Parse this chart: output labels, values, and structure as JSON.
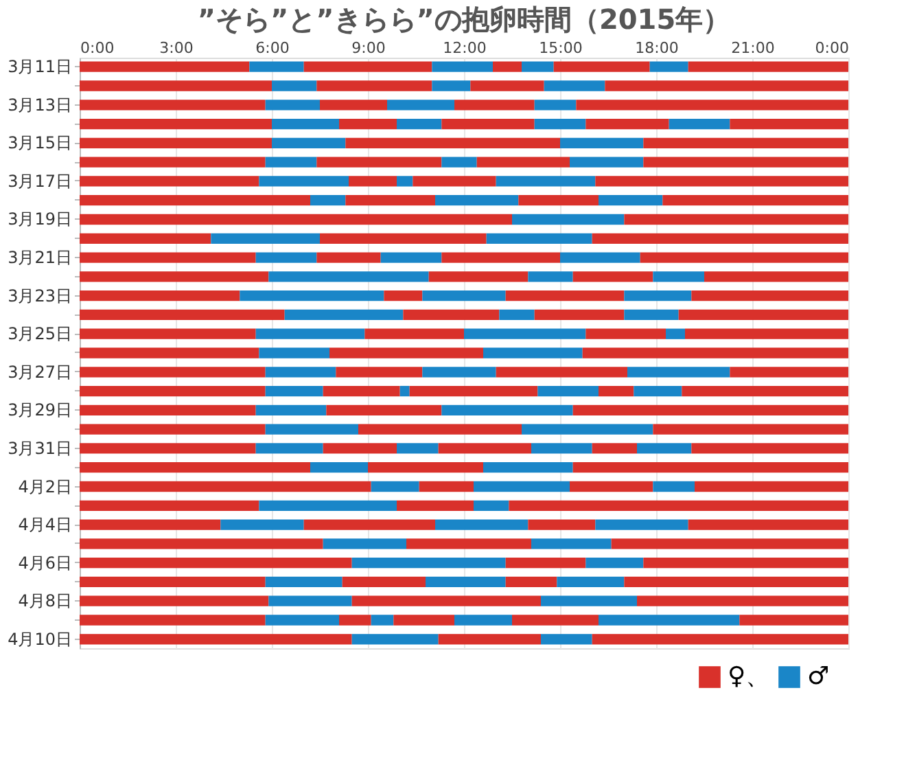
{
  "chart_data": {
    "type": "bar",
    "orientation": "horizontal",
    "stacked": true,
    "title": "”そら”と”きらら”の抱卵時間（2015年）",
    "categories": [
      "3月11日",
      null,
      "3月13日",
      null,
      "3月15日",
      null,
      "3月17日",
      null,
      "3月19日",
      null,
      "3月21日",
      null,
      "3月23日",
      null,
      "3月25日",
      null,
      "3月27日",
      null,
      "3月29日",
      null,
      "3月31日",
      null,
      "4月2日",
      null,
      "4月4日",
      null,
      "4月6日",
      null,
      "4月8日",
      null,
      "4月10日"
    ],
    "series": [
      {
        "name": "♀、",
        "color": "#d9312b",
        "values": [
          5.3,
          6.0,
          5.8,
          6.0,
          6.0,
          5.8,
          5.6,
          7.2,
          13.5,
          4.1,
          5.5,
          5.9,
          5.0,
          6.4,
          5.5,
          5.6,
          5.8,
          5.8,
          5.5,
          5.8,
          5.5,
          7.2,
          9.1,
          5.6,
          4.4,
          7.6,
          8.5,
          5.8,
          5.9,
          5.8,
          8.5
        ]
      },
      {
        "name": "♂",
        "color": "#1a86c8",
        "values": [
          1.7,
          1.4,
          1.7,
          2.1,
          2.3,
          1.6,
          2.8,
          1.1,
          3.5,
          3.4,
          1.9,
          5.0,
          4.5,
          3.7,
          3.4,
          2.2,
          2.2,
          1.8,
          2.2,
          2.9,
          2.1,
          1.8,
          1.5,
          4.3,
          2.6,
          2.6,
          4.8,
          2.4,
          2.6,
          2.3,
          2.7
        ]
      },
      {
        "color": "#d9312b",
        "values": [
          4.0,
          3.6,
          2.1,
          1.8,
          6.7,
          3.9,
          1.5,
          2.8,
          7.0,
          5.2,
          2.0,
          3.1,
          1.2,
          3.0,
          3.1,
          4.8,
          2.7,
          2.4,
          3.6,
          5.1,
          2.3,
          3.6,
          1.7,
          2.4,
          4.1,
          3.9,
          2.5,
          2.6,
          5.9,
          1.0,
          3.2
        ]
      },
      {
        "color": "#1a86c8",
        "values": [
          1.9,
          1.2,
          2.1,
          1.4,
          2.6,
          1.1,
          0.5,
          2.6,
          null,
          3.3,
          1.9,
          1.4,
          2.6,
          1.1,
          3.8,
          3.1,
          2.3,
          0.3,
          4.1,
          4.1,
          1.3,
          2.8,
          3.0,
          1.1,
          2.9,
          2.5,
          1.8,
          2.5,
          3.0,
          0.7,
          1.6
        ]
      },
      {
        "color": "#d9312b",
        "values": [
          0.9,
          2.3,
          2.5,
          2.9,
          6.4,
          2.9,
          2.6,
          2.5,
          null,
          8.0,
          3.7,
          2.5,
          3.7,
          2.8,
          2.5,
          8.3,
          4.1,
          4.0,
          8.6,
          6.1,
          2.9,
          8.6,
          2.6,
          10.6,
          2.1,
          7.4,
          6.4,
          1.6,
          6.6,
          1.9,
          8.0
        ]
      },
      {
        "color": "#1a86c8",
        "values": [
          1.0,
          1.9,
          1.3,
          1.6,
          null,
          2.3,
          3.1,
          2.0,
          null,
          null,
          2.5,
          1.6,
          2.1,
          1.7,
          0.6,
          null,
          3.2,
          1.9,
          null,
          null,
          1.9,
          null,
          1.3,
          null,
          2.9,
          null,
          null,
          2.1,
          null,
          1.8,
          null
        ]
      },
      {
        "color": "#d9312b",
        "values": [
          3.0,
          7.6,
          8.5,
          2.6,
          null,
          6.4,
          7.9,
          5.8,
          null,
          null,
          6.5,
          4.5,
          4.9,
          5.3,
          5.1,
          null,
          3.7,
          1.1,
          null,
          null,
          1.4,
          null,
          4.8,
          null,
          5.0,
          null,
          null,
          7.0,
          null,
          2.7,
          null
        ]
      },
      {
        "color": "#1a86c8",
        "values": [
          1.2,
          null,
          null,
          1.9,
          null,
          null,
          null,
          null,
          null,
          null,
          null,
          null,
          null,
          null,
          null,
          null,
          null,
          1.5,
          null,
          null,
          1.7,
          null,
          null,
          null,
          null,
          null,
          null,
          null,
          null,
          4.4,
          null
        ]
      },
      {
        "color": "#d9312b",
        "values": [
          5.0,
          null,
          null,
          3.7,
          null,
          null,
          null,
          null,
          null,
          null,
          null,
          null,
          null,
          null,
          null,
          null,
          null,
          5.2,
          null,
          null,
          4.9,
          null,
          null,
          null,
          null,
          null,
          null,
          null,
          null,
          3.4,
          null
        ]
      }
    ],
    "xlim": [
      0,
      24
    ],
    "xticks": [
      {
        "value": 0,
        "label": "0:00"
      },
      {
        "value": 3,
        "label": "3:00"
      },
      {
        "value": 6,
        "label": "6:00"
      },
      {
        "value": 9,
        "label": "9:00"
      },
      {
        "value": 12,
        "label": "12:00"
      },
      {
        "value": 15,
        "label": "15:00"
      },
      {
        "value": 18,
        "label": "18:00"
      },
      {
        "value": 21,
        "label": "21:00"
      },
      {
        "value": 24,
        "label": "0:00"
      }
    ],
    "grid": "x",
    "legend": "bottom right"
  }
}
